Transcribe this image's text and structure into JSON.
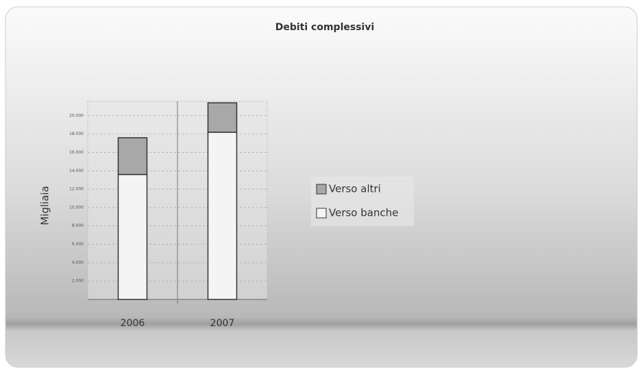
{
  "chart_data": {
    "type": "stacked_bar",
    "title": "Debiti complessivi",
    "y_label": "Migliaia",
    "categories": [
      "2006",
      "2007"
    ],
    "series": [
      {
        "name": "Verso banche",
        "color": "#f4f4f4",
        "values": [
          13600,
          18200
        ]
      },
      {
        "name": "Verso altri",
        "color": "#a8a8a8",
        "values": [
          4000,
          3200
        ]
      }
    ],
    "ylim": [
      0,
      22000
    ],
    "yticks": [
      {
        "value": 2000,
        "label": "2.000"
      },
      {
        "value": 4000,
        "label": "4.000"
      },
      {
        "value": 6000,
        "label": "6.000"
      },
      {
        "value": 8000,
        "label": "8.000"
      },
      {
        "value": 10000,
        "label": "10.000"
      },
      {
        "value": 12000,
        "label": "12.000"
      },
      {
        "value": 14000,
        "label": "14.000"
      },
      {
        "value": 16000,
        "label": "16.000"
      },
      {
        "value": 18000,
        "label": "18.000"
      },
      {
        "value": 20000,
        "label": "20.000"
      }
    ],
    "grid": true
  }
}
